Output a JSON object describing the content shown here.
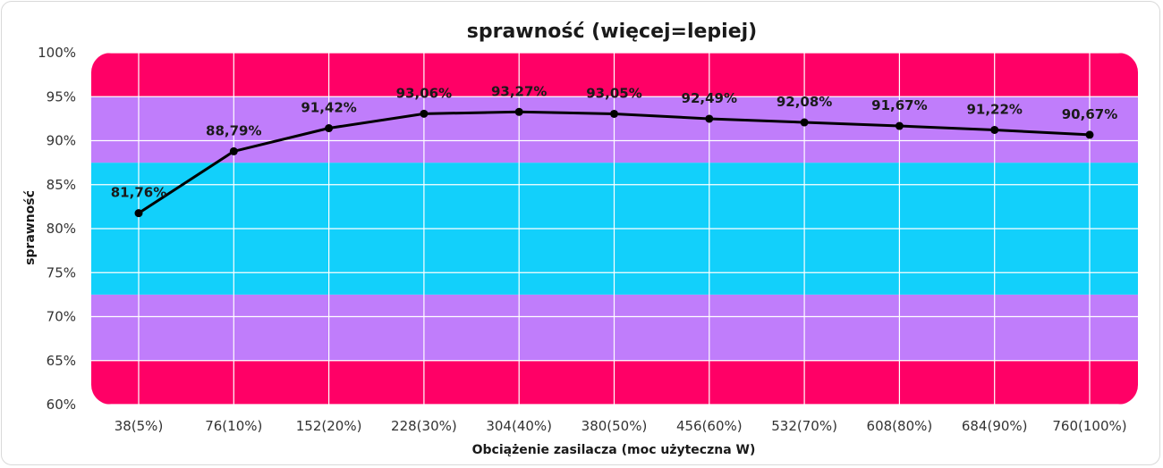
{
  "chart_data": {
    "type": "line",
    "title": "sprawność (więcej=lepiej)",
    "xlabel": "Obciążenie zasilacza (moc użyteczna W)",
    "ylabel": "sprawność",
    "categories": [
      "38(5%)",
      "76(10%)",
      "152(20%)",
      "228(30%)",
      "304(40%)",
      "380(50%)",
      "456(60%)",
      "532(70%)",
      "608(80%)",
      "684(90%)",
      "760(100%)"
    ],
    "series": [
      {
        "values": [
          81.76,
          88.79,
          91.42,
          93.06,
          93.27,
          93.05,
          92.49,
          92.08,
          91.67,
          91.22,
          90.67
        ],
        "data_labels": [
          "81,76%",
          "88,79%",
          "91,42%",
          "93,06%",
          "93,27%",
          "93,05%",
          "92,49%",
          "92,08%",
          "91,67%",
          "91,22%",
          "90,67%"
        ]
      }
    ],
    "ylim": [
      60,
      100
    ],
    "yticks": [
      "60%",
      "65%",
      "70%",
      "75%",
      "80%",
      "85%",
      "90%",
      "95%",
      "100%"
    ],
    "bands": [
      {
        "from": 60,
        "to": 65,
        "color": "#ff0066"
      },
      {
        "from": 65,
        "to": 72.5,
        "color": "#c07dfb"
      },
      {
        "from": 72.5,
        "to": 87.5,
        "color": "#12d0fb"
      },
      {
        "from": 87.5,
        "to": 95,
        "color": "#c07dfb"
      },
      {
        "from": 95,
        "to": 100,
        "color": "#ff0066"
      }
    ],
    "line_color": "#000000",
    "grid": true,
    "legend": "none"
  }
}
